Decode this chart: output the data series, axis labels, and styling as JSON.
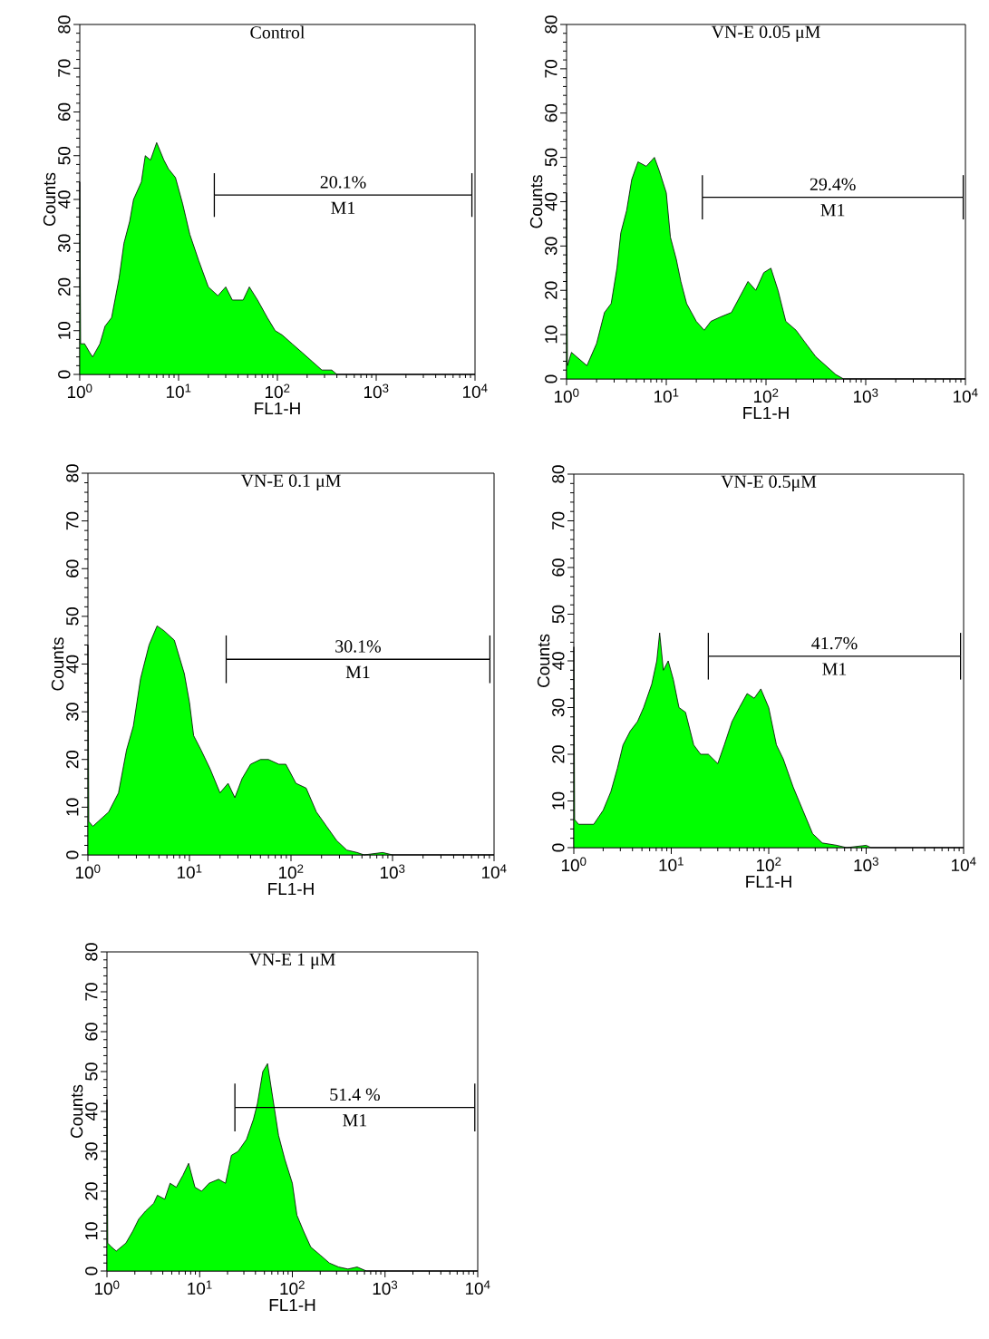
{
  "chart_data": [
    {
      "type": "area",
      "title": "Control",
      "xlabel": "FL1-H",
      "ylabel": "Counts",
      "log": "x",
      "xlim": [
        1,
        10000
      ],
      "ylim": [
        0,
        80
      ],
      "xticks": [
        {
          "value": 1,
          "label": "10$^{0}$"
        },
        {
          "value": 10,
          "label": "10$^{1}$"
        },
        {
          "value": 100,
          "label": "10$^{2}$"
        },
        {
          "value": 1000,
          "label": "10$^{3}$"
        },
        {
          "value": 10000,
          "label": "10$^{4}$"
        }
      ],
      "yticks": [
        0,
        10,
        20,
        30,
        40,
        50,
        60,
        70,
        80
      ],
      "series": [
        {
          "color": "#00ff00",
          "x": [
            1,
            1.02,
            1.12,
            1.26,
            1.35,
            1.6,
            1.8,
            2.1,
            2.5,
            2.8,
            3.2,
            3.5,
            4.2,
            4.6,
            5.2,
            6.0,
            7.1,
            7.9,
            9.3,
            11,
            13,
            16,
            20,
            25,
            30,
            35,
            45,
            52,
            63,
            79,
            95,
            112,
            141,
            178,
            224,
            282,
            355,
            400,
            10000
          ],
          "values": [
            44,
            7,
            7,
            5,
            4,
            7,
            11,
            13,
            22,
            30,
            35,
            40,
            44,
            50,
            49,
            53,
            49,
            47,
            45,
            39,
            32,
            26,
            20,
            18,
            20,
            17,
            17,
            20,
            17,
            13,
            10,
            9,
            7,
            5,
            3,
            1,
            1,
            0,
            0
          ]
        },
        {
          "type": "line",
          "color": "#000000",
          "x": [
            23,
            9300
          ],
          "values": [
            41,
            41
          ],
          "errors": [
            5,
            5
          ]
        }
      ],
      "annotations": [
        "20.1%",
        "M1"
      ]
    },
    {
      "type": "area",
      "title": "VN-E 0.05 μM",
      "xlabel": "FL1-H",
      "ylabel": "Counts",
      "log": "x",
      "xlim": [
        1,
        10000
      ],
      "ylim": [
        0,
        80
      ],
      "xticks": [
        {
          "value": 1,
          "label": "10$^{0}$"
        },
        {
          "value": 10,
          "label": "10$^{1}$"
        },
        {
          "value": 100,
          "label": "10$^{2}$"
        },
        {
          "value": 1000,
          "label": "10$^{3}$"
        },
        {
          "value": 10000,
          "label": "10$^{4}$"
        }
      ],
      "yticks": [
        0,
        10,
        20,
        30,
        40,
        50,
        60,
        70,
        80
      ],
      "series": [
        {
          "color": "#00ff00",
          "x": [
            1,
            1.02,
            1.12,
            1.26,
            1.6,
            2.0,
            2.4,
            2.8,
            3.2,
            3.5,
            4.0,
            4.5,
            5.2,
            6.3,
            7.6,
            8.5,
            10,
            11,
            12.6,
            14,
            16,
            20,
            24,
            28,
            35,
            45,
            56,
            66,
            79,
            95,
            112,
            132,
            158,
            200,
            251,
            316,
            398,
            500,
            600,
            10000
          ],
          "values": [
            42,
            3,
            6,
            5,
            3,
            8,
            15,
            17,
            25,
            33,
            38,
            45,
            49,
            48,
            50,
            47,
            42,
            32,
            27,
            22,
            17,
            13,
            11,
            13,
            14,
            15,
            19,
            22,
            20,
            24,
            25,
            20,
            13,
            11,
            8,
            5,
            3,
            1,
            0,
            0
          ]
        },
        {
          "type": "line",
          "color": "#000000",
          "x": [
            23,
            9500
          ],
          "values": [
            41,
            41
          ],
          "errors": [
            5,
            5
          ]
        }
      ],
      "annotations": [
        "29.4%",
        "M1"
      ]
    },
    {
      "type": "area",
      "title": "VN-E 0.1 μM",
      "xlabel": "FL1-H",
      "ylabel": "Counts",
      "log": "x",
      "xlim": [
        1,
        10000
      ],
      "ylim": [
        0,
        80
      ],
      "xticks": [
        {
          "value": 1,
          "label": "10$^{0}$"
        },
        {
          "value": 10,
          "label": "10$^{1}$"
        },
        {
          "value": 100,
          "label": "10$^{2}$"
        },
        {
          "value": 1000,
          "label": "10$^{3}$"
        },
        {
          "value": 10000,
          "label": "10$^{4}$"
        }
      ],
      "yticks": [
        0,
        10,
        20,
        30,
        40,
        50,
        60,
        70,
        80
      ],
      "series": [
        {
          "color": "#00ff00",
          "x": [
            1,
            1.02,
            1.12,
            1.26,
            1.6,
            2.0,
            2.4,
            2.8,
            3.3,
            4.0,
            4.8,
            5.6,
            7.1,
            8.9,
            10,
            11,
            13,
            16,
            20,
            24,
            28,
            33,
            40,
            50,
            60,
            76,
            89,
            112,
            141,
            178,
            224,
            282,
            355,
            447,
            525,
            800,
            1000,
            10000
          ],
          "values": [
            44,
            7,
            6,
            7,
            9,
            13,
            22,
            27,
            37,
            44,
            48,
            47,
            45,
            38,
            32,
            25,
            22,
            18,
            13,
            15,
            12,
            16,
            19,
            20,
            20,
            19,
            19,
            15,
            14,
            9,
            6,
            3,
            1,
            0.5,
            0,
            0.5,
            0,
            0
          ]
        },
        {
          "type": "line",
          "color": "#000000",
          "x": [
            23,
            9100
          ],
          "values": [
            41,
            41
          ],
          "errors": [
            5,
            5
          ]
        }
      ],
      "annotations": [
        "30.1%",
        "M1"
      ]
    },
    {
      "type": "area",
      "title": "VN-E 0.5μM",
      "xlabel": "FL1-H",
      "ylabel": "Counts",
      "log": "x",
      "xlim": [
        1,
        10000
      ],
      "ylim": [
        0,
        80
      ],
      "xticks": [
        {
          "value": 1,
          "label": "10$^{0}$"
        },
        {
          "value": 10,
          "label": "10$^{1}$"
        },
        {
          "value": 100,
          "label": "10$^{2}$"
        },
        {
          "value": 1000,
          "label": "10$^{3}$"
        },
        {
          "value": 10000,
          "label": "10$^{4}$"
        }
      ],
      "yticks": [
        0,
        10,
        20,
        30,
        40,
        50,
        60,
        70,
        80
      ],
      "series": [
        {
          "color": "#00ff00",
          "x": [
            1,
            1.02,
            1.12,
            1.26,
            1.6,
            2.0,
            2.4,
            2.8,
            3.2,
            3.8,
            4.5,
            5.2,
            6.3,
            7.1,
            7.6,
            8.3,
            9.3,
            10.5,
            12,
            14,
            17,
            20,
            24,
            30,
            35,
            42,
            50,
            60,
            71,
            83,
            100,
            120,
            141,
            178,
            224,
            282,
            355,
            500,
            630,
            1000,
            1120,
            10000
          ],
          "values": [
            43,
            6,
            5,
            5,
            5,
            8,
            12,
            17,
            22,
            25,
            27,
            30,
            35,
            40,
            46,
            38,
            40,
            36,
            30,
            29,
            22,
            20,
            20,
            18,
            22,
            27,
            30,
            33,
            32,
            34,
            30,
            22,
            19,
            13,
            8,
            3,
            1,
            0.5,
            0,
            0.5,
            0,
            0
          ]
        },
        {
          "type": "line",
          "color": "#000000",
          "x": [
            24,
            9300
          ],
          "values": [
            41,
            41
          ],
          "errors": [
            5,
            5
          ]
        }
      ],
      "annotations": [
        "41.7%",
        "M1"
      ]
    },
    {
      "type": "area",
      "title": "VN-E 1 μM",
      "xlabel": "FL1-H",
      "ylabel": "Counts",
      "log": "x",
      "xlim": [
        1,
        10000
      ],
      "ylim": [
        0,
        80
      ],
      "xticks": [
        {
          "value": 1,
          "label": "10$^{0}$"
        },
        {
          "value": 10,
          "label": "10$^{1}$"
        },
        {
          "value": 100,
          "label": "10$^{2}$"
        },
        {
          "value": 1000,
          "label": "10$^{3}$"
        },
        {
          "value": 10000,
          "label": "10$^{4}$"
        }
      ],
      "yticks": [
        0,
        10,
        20,
        30,
        40,
        50,
        60,
        70,
        80
      ],
      "series": [
        {
          "color": "#00ff00",
          "x": [
            1,
            1.02,
            1.12,
            1.26,
            1.6,
            1.9,
            2.2,
            2.6,
            3.2,
            3.5,
            4.2,
            4.8,
            5.6,
            6.6,
            7.6,
            8.9,
            10.5,
            12.6,
            16,
            19,
            22,
            26,
            32,
            38,
            42,
            48,
            54,
            60,
            71,
            83,
            100,
            112,
            132,
            158,
            200,
            251,
            316,
            398,
            500,
            630,
            10000
          ],
          "values": [
            43,
            7,
            6,
            5,
            7,
            10,
            13,
            15,
            17,
            19,
            18,
            22,
            21,
            24,
            27,
            21,
            20,
            22,
            23,
            22,
            29,
            30,
            33,
            38,
            42,
            50,
            52,
            45,
            34,
            28,
            22,
            14,
            10,
            6,
            4,
            2,
            1,
            0.5,
            1,
            0,
            0
          ]
        },
        {
          "type": "line",
          "color": "#000000",
          "x": [
            24,
            9300
          ],
          "values": [
            41,
            41
          ],
          "errors": [
            6,
            6
          ]
        }
      ],
      "annotations": [
        "51.4 %",
        "M1"
      ]
    }
  ]
}
